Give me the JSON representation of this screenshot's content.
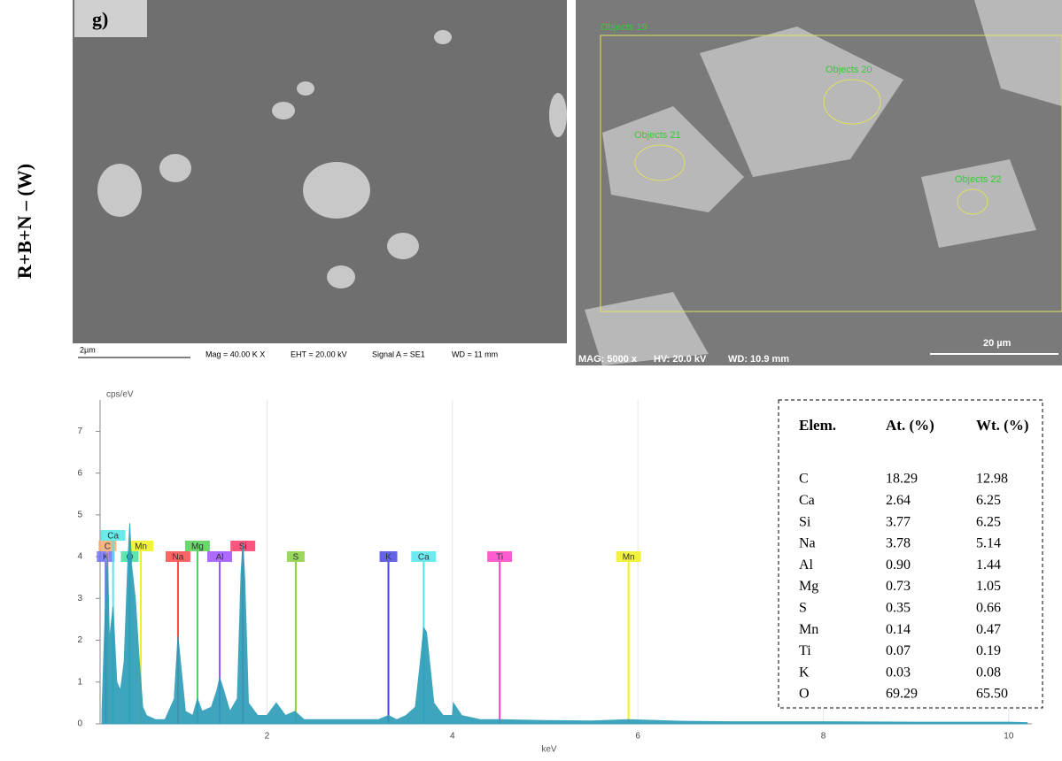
{
  "sample_label": "R+B+N – (W)",
  "panel_label": "g)",
  "sem_left": {
    "scale": "2µm",
    "mag": "Mag = 40.00 K X",
    "eht": "EHT = 20.00 kV",
    "signal": "Signal A = SE1",
    "wd": "WD =  11 mm"
  },
  "sem_right": {
    "objects": [
      "Objects 19",
      "Objects 20",
      "Objects 21",
      "Objects 22"
    ],
    "mag": "MAG: 5000 x",
    "hv": "HV: 20.0 kV",
    "wd": "WD: 10.9 mm",
    "scale": "20 µm"
  },
  "chart_data": {
    "type": "area",
    "y_label": "cps/eV",
    "x_label": "keV",
    "color": "#2b9cb8",
    "xlim": [
      0.2,
      10.25
    ],
    "ylim": [
      0,
      7.75
    ],
    "xticks": [
      2,
      4,
      6,
      8,
      10
    ],
    "yticks": [
      0,
      1,
      2,
      3,
      4,
      5,
      6,
      7
    ],
    "x": [
      0.22,
      0.26,
      0.28,
      0.3,
      0.34,
      0.38,
      0.42,
      0.46,
      0.5,
      0.52,
      0.54,
      0.58,
      0.62,
      0.66,
      0.7,
      0.8,
      0.9,
      1.0,
      1.04,
      1.08,
      1.12,
      1.2,
      1.25,
      1.3,
      1.4,
      1.46,
      1.49,
      1.52,
      1.6,
      1.68,
      1.72,
      1.74,
      1.76,
      1.8,
      1.9,
      2.0,
      2.1,
      2.2,
      2.3,
      2.4,
      2.6,
      2.8,
      3.0,
      3.2,
      3.31,
      3.4,
      3.5,
      3.6,
      3.66,
      3.69,
      3.72,
      3.8,
      3.9,
      4.0,
      4.01,
      4.1,
      4.3,
      4.5,
      5.0,
      5.5,
      5.9,
      6.5,
      7.0,
      8.0,
      9.0,
      10.0,
      10.2
    ],
    "values": [
      0.3,
      3.0,
      4.1,
      2.0,
      2.8,
      1.0,
      0.8,
      1.5,
      3.9,
      4.8,
      3.8,
      3.0,
      1.6,
      0.4,
      0.2,
      0.1,
      0.1,
      0.6,
      2.1,
      1.2,
      0.3,
      0.2,
      0.6,
      0.3,
      0.4,
      0.8,
      1.1,
      0.9,
      0.3,
      0.6,
      3.6,
      4.3,
      3.5,
      0.5,
      0.2,
      0.2,
      0.5,
      0.2,
      0.3,
      0.1,
      0.1,
      0.1,
      0.1,
      0.1,
      0.2,
      0.1,
      0.2,
      0.4,
      1.6,
      2.3,
      2.2,
      0.5,
      0.2,
      0.2,
      0.5,
      0.2,
      0.1,
      0.1,
      0.08,
      0.07,
      0.1,
      0.06,
      0.05,
      0.05,
      0.04,
      0.04,
      0.03
    ],
    "element_lines": [
      {
        "label": "K",
        "energy": 0.26,
        "color": "#7070ff"
      },
      {
        "label": "C",
        "energy": 0.28,
        "color": "#f4a870"
      },
      {
        "label": "Ca",
        "energy": 0.34,
        "color": "#50e8e8"
      },
      {
        "label": "O",
        "energy": 0.52,
        "color": "#40e0a0"
      },
      {
        "label": "Mn",
        "energy": 0.64,
        "color": "#f0f020"
      },
      {
        "label": "Na",
        "energy": 1.04,
        "color": "#ff4848"
      },
      {
        "label": "Mg",
        "energy": 1.25,
        "color": "#50d050"
      },
      {
        "label": "Al",
        "energy": 1.49,
        "color": "#a050ff"
      },
      {
        "label": "Si",
        "energy": 1.74,
        "color": "#ff3868"
      },
      {
        "label": "S",
        "energy": 2.31,
        "color": "#88d040"
      },
      {
        "label": "K",
        "energy": 3.31,
        "color": "#4848e0"
      },
      {
        "label": "Ca",
        "energy": 3.69,
        "color": "#50e8f0"
      },
      {
        "label": "Ti",
        "energy": 4.51,
        "color": "#ff40c8"
      },
      {
        "label": "Mn",
        "energy": 5.9,
        "color": "#f0f020"
      }
    ]
  },
  "table": {
    "header": [
      "Elem.",
      "At. (%)",
      "Wt. (%)"
    ],
    "rows": [
      [
        "C",
        "18.29",
        "12.98"
      ],
      [
        "Ca",
        "2.64",
        "6.25"
      ],
      [
        "Si",
        "3.77",
        "6.25"
      ],
      [
        "Na",
        "3.78",
        "5.14"
      ],
      [
        "Al",
        "0.90",
        "1.44"
      ],
      [
        "Mg",
        "0.73",
        "1.05"
      ],
      [
        "S",
        "0.35",
        "0.66"
      ],
      [
        "Mn",
        "0.14",
        "0.47"
      ],
      [
        "Ti",
        "0.07",
        "0.19"
      ],
      [
        "K",
        "0.03",
        "0.08"
      ],
      [
        "O",
        "69.29",
        "65.50"
      ]
    ]
  }
}
